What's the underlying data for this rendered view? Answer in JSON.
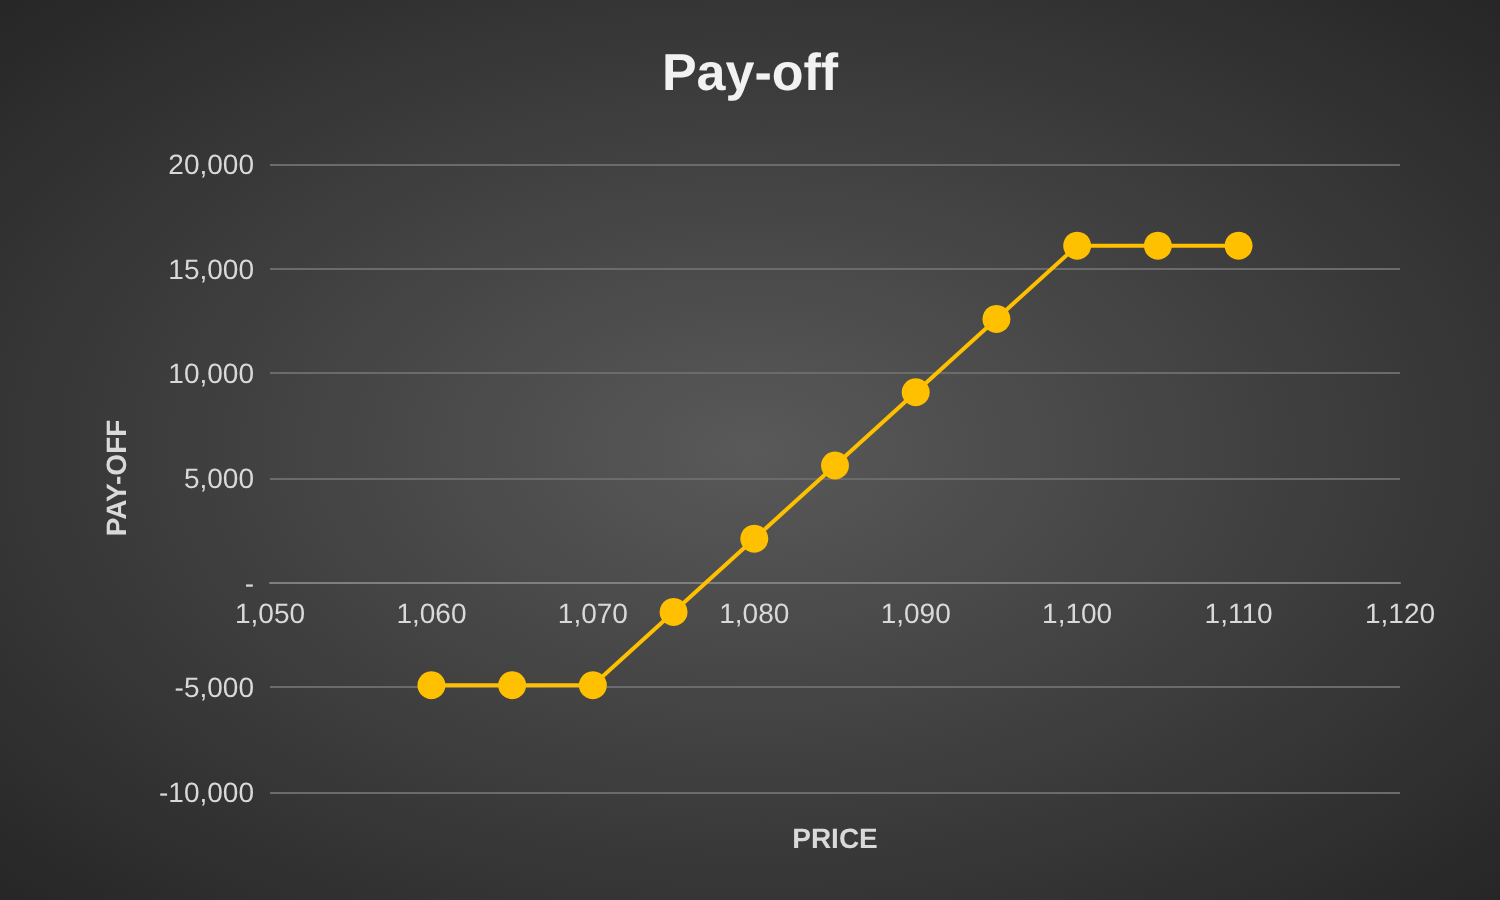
{
  "chart_data": {
    "type": "line",
    "title": "Pay-off",
    "xlabel": "PRICE",
    "ylabel": "PAY-OFF",
    "x": [
      1060,
      1065,
      1070,
      1075,
      1080,
      1085,
      1090,
      1095,
      1100,
      1105,
      1110
    ],
    "series": [
      {
        "color": "#ffc000",
        "values": [
          -4900,
          -4900,
          -4900,
          -1400,
          2100,
          5600,
          9100,
          12600,
          16100,
          16100,
          16100
        ]
      }
    ],
    "xlim": [
      1050,
      1120
    ],
    "xticks": [
      {
        "value": 1050,
        "label": "1,050"
      },
      {
        "value": 1060,
        "label": "1,060"
      },
      {
        "value": 1070,
        "label": "1,070"
      },
      {
        "value": 1080,
        "label": "1,080"
      },
      {
        "value": 1090,
        "label": "1,090"
      },
      {
        "value": 1100,
        "label": "1,100"
      },
      {
        "value": 1110,
        "label": "1,110"
      },
      {
        "value": 1120,
        "label": "1,120"
      }
    ],
    "ylim": [
      -10000,
      20000
    ],
    "yticks": [
      {
        "value": -10000,
        "label": "-10,000"
      },
      {
        "value": -5000,
        "label": "-5,000"
      },
      {
        "value": 0,
        "label": "-"
      },
      {
        "value": 5000,
        "label": "5,000"
      },
      {
        "value": 10000,
        "label": "10,000"
      },
      {
        "value": 15000,
        "label": "15,000"
      },
      {
        "value": 20000,
        "label": "20,000"
      }
    ],
    "grid": "y",
    "marker": "circle",
    "line_style": "solid"
  }
}
